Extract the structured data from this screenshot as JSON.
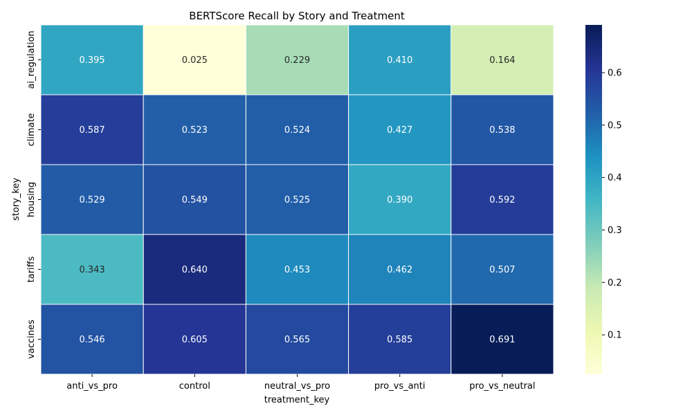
{
  "chart_data": {
    "type": "heatmap",
    "title": "BERTScore Recall by Story and Treatment",
    "xlabel": "treatment_key",
    "ylabel": "story_key",
    "x_categories": [
      "anti_vs_pro",
      "control",
      "neutral_vs_pro",
      "pro_vs_anti",
      "pro_vs_neutral"
    ],
    "y_categories": [
      "ai_regulation",
      "climate",
      "housing",
      "tariffs",
      "vaccines"
    ],
    "values": [
      [
        0.395,
        0.025,
        0.229,
        0.41,
        0.164
      ],
      [
        0.587,
        0.523,
        0.524,
        0.427,
        0.538
      ],
      [
        0.529,
        0.549,
        0.525,
        0.39,
        0.592
      ],
      [
        0.343,
        0.64,
        0.453,
        0.462,
        0.507
      ],
      [
        0.546,
        0.605,
        0.565,
        0.585,
        0.691
      ]
    ],
    "value_labels": [
      [
        "0.395",
        "0.025",
        "0.229",
        "0.410",
        "0.164"
      ],
      [
        "0.587",
        "0.523",
        "0.524",
        "0.427",
        "0.538"
      ],
      [
        "0.529",
        "0.549",
        "0.525",
        "0.390",
        "0.592"
      ],
      [
        "0.343",
        "0.640",
        "0.453",
        "0.462",
        "0.507"
      ],
      [
        "0.546",
        "0.605",
        "0.565",
        "0.585",
        "0.691"
      ]
    ],
    "colormap": "YlGnBu",
    "color_range": [
      0.025,
      0.691
    ],
    "colorbar_ticks": [
      0.1,
      0.2,
      0.3,
      0.4,
      0.5,
      0.6
    ],
    "colorbar_tick_labels": [
      "0.1",
      "0.2",
      "0.3",
      "0.4",
      "0.5",
      "0.6"
    ],
    "colorbar_position": "right",
    "grid": false
  }
}
